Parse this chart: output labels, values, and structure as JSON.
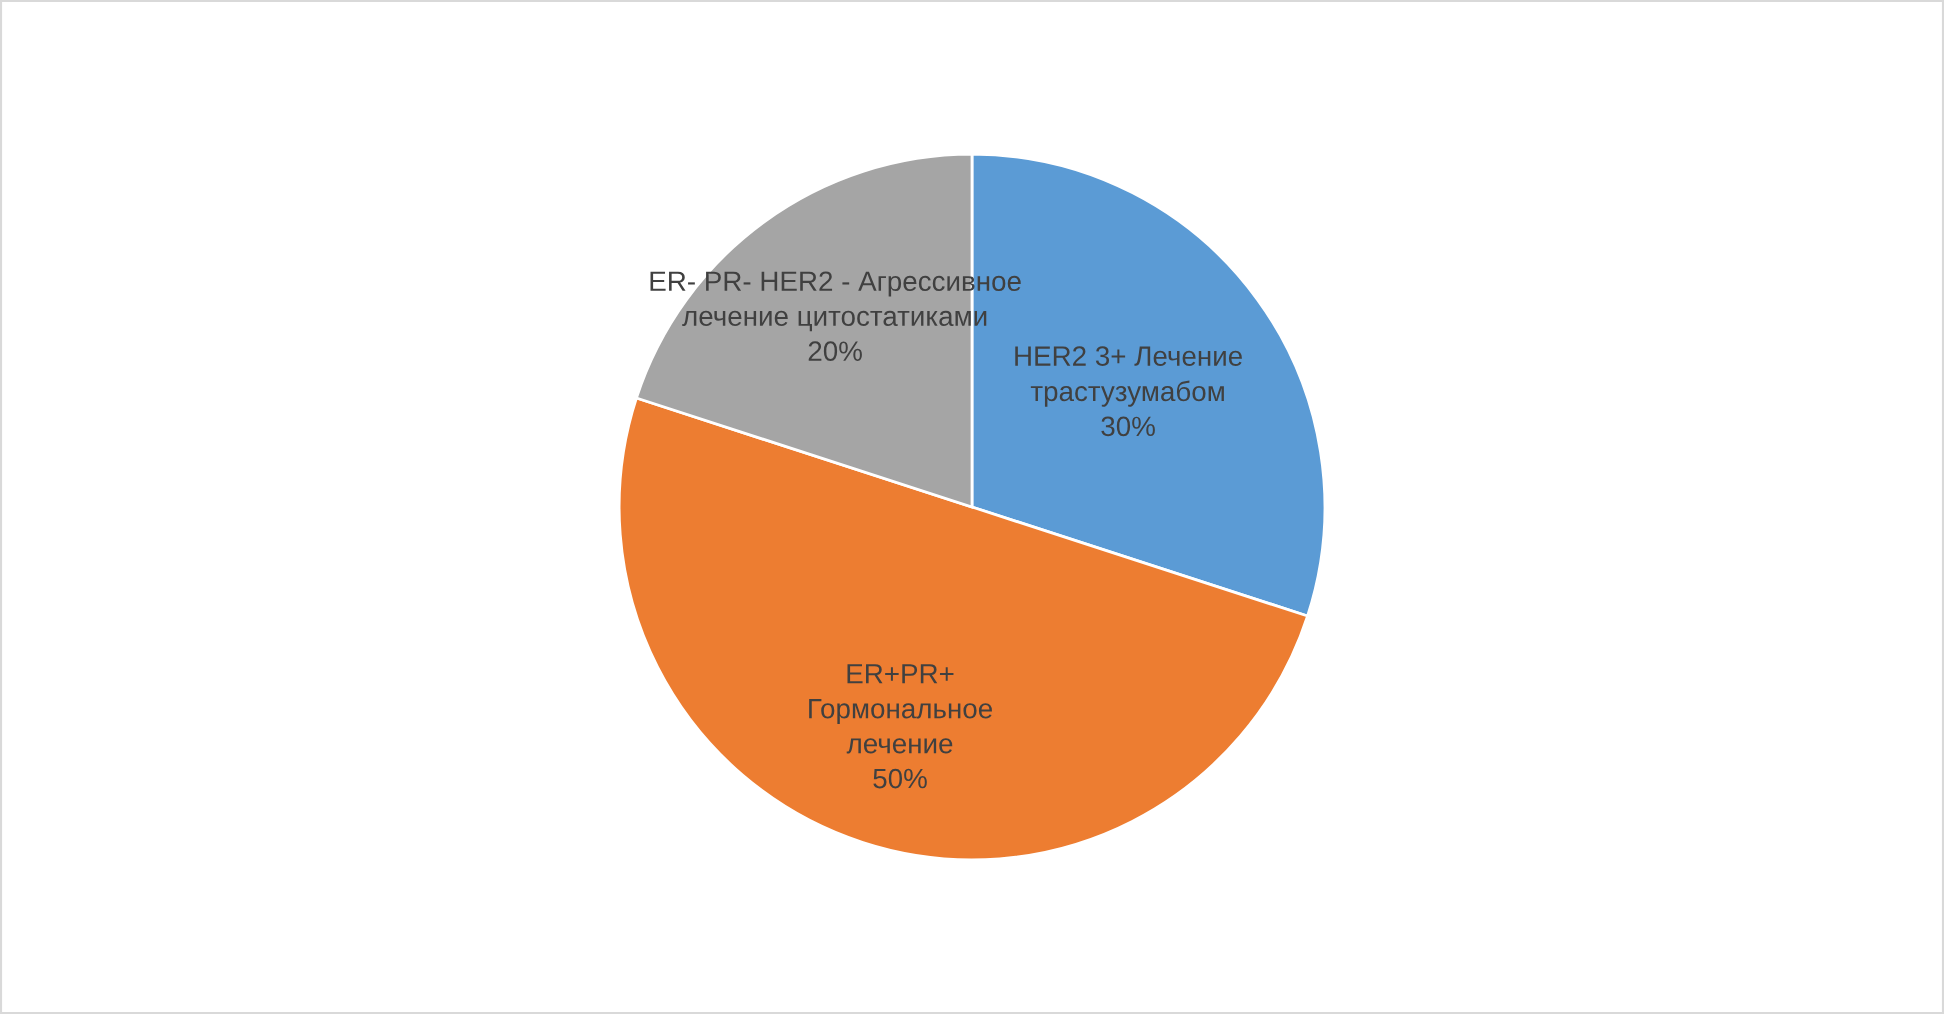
{
  "chart_data": {
    "type": "pie",
    "categories": [
      "HER2 3+ Лечение\nтрастузумабом",
      "ER+PR+\nГормональное\nлечение",
      "ER- PR- HER2 - Агрессивное\nлечение цитостатиками"
    ],
    "values": [
      30,
      50,
      20
    ],
    "value_labels": [
      "30%",
      "50%",
      "20%"
    ],
    "colors": [
      "#5b9bd5",
      "#ed7d31",
      "#a5a5a5"
    ]
  }
}
